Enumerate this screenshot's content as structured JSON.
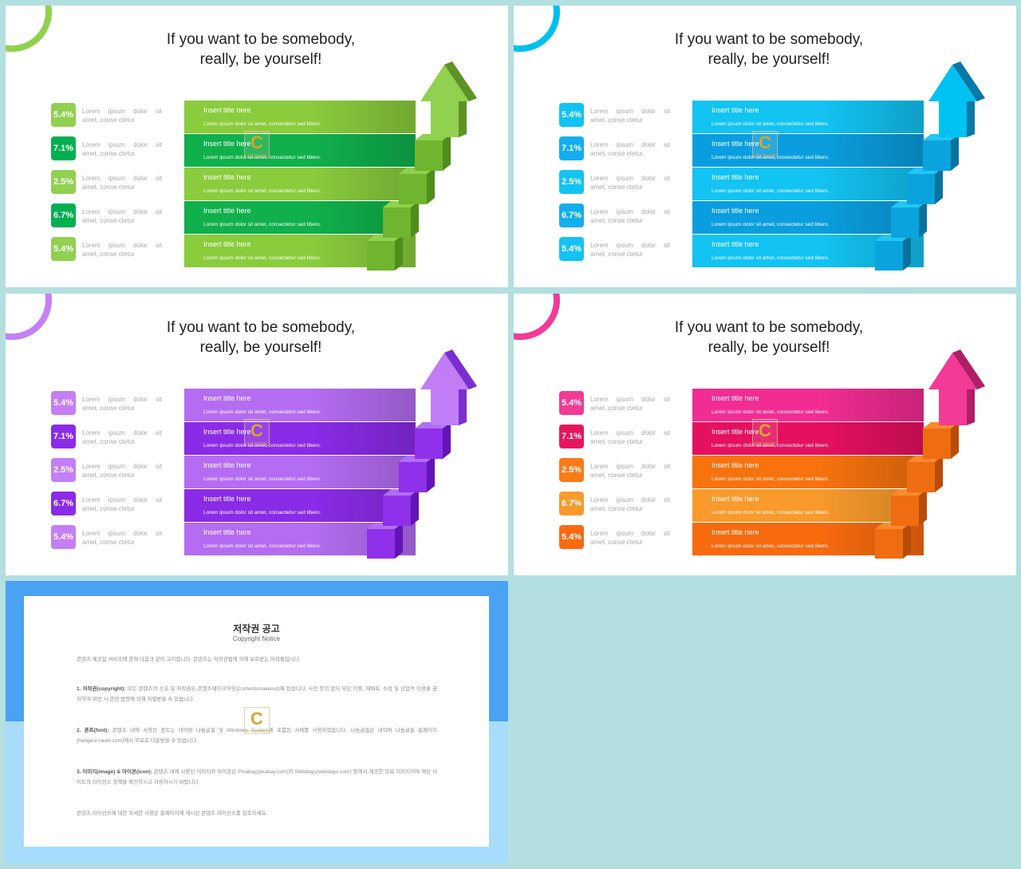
{
  "slides": [
    {
      "id": "green",
      "accent": "#92d050",
      "title_line1": "If you want to be somebody,",
      "title_line2": "really, be yourself!",
      "badges": [
        {
          "value": "5.4%",
          "color": "#92d050"
        },
        {
          "value": "7.1%",
          "color": "#00b050"
        },
        {
          "value": "2.5%",
          "color": "#92d050"
        },
        {
          "value": "6.7%",
          "color": "#00b050"
        },
        {
          "value": "5.4%",
          "color": "#92d050"
        }
      ],
      "band_colors": [
        "#8acc3c",
        "#10b04c",
        "#8acc3c",
        "#10b04c",
        "#8acc3c"
      ],
      "stair_colors": {
        "top": "#8fd14a",
        "front": "#6fb52f",
        "side": "#4f8d1c",
        "arrow": "#92d050",
        "arrow_side": "#5d9326"
      }
    },
    {
      "id": "blue",
      "accent": "#00c0f0",
      "title_line1": "If you want to be somebody,",
      "title_line2": "really, be yourself!",
      "badges": [
        {
          "value": "5.4%",
          "color": "#12c3f3"
        },
        {
          "value": "7.1%",
          "color": "#12aef0"
        },
        {
          "value": "2.5%",
          "color": "#12c3f3"
        },
        {
          "value": "6.7%",
          "color": "#12aef0"
        },
        {
          "value": "5.4%",
          "color": "#12c3f3"
        }
      ],
      "band_colors": [
        "#12c3f3",
        "#0a9ee0",
        "#12c3f3",
        "#0a9ee0",
        "#12c3f3"
      ],
      "stair_colors": {
        "top": "#22c6f6",
        "front": "#0ba3de",
        "side": "#08729e",
        "arrow": "#00c2f2",
        "arrow_side": "#0a78a8"
      }
    },
    {
      "id": "purple",
      "accent": "#c580f8",
      "title_line1": "If you want to be somebody,",
      "title_line2": "really, be yourself!",
      "badges": [
        {
          "value": "5.4%",
          "color": "#c47ef6"
        },
        {
          "value": "7.1%",
          "color": "#8a2be8"
        },
        {
          "value": "2.5%",
          "color": "#c47ef6"
        },
        {
          "value": "6.7%",
          "color": "#8a2be8"
        },
        {
          "value": "5.4%",
          "color": "#c47ef6"
        }
      ],
      "band_colors": [
        "#b46cf2",
        "#8a2be8",
        "#b46cf2",
        "#8a2be8",
        "#b46cf2"
      ],
      "stair_colors": {
        "top": "#b06ef5",
        "front": "#8f30ea",
        "side": "#6314b8",
        "arrow": "#c07df6",
        "arrow_side": "#7a2ed0"
      }
    },
    {
      "id": "pink",
      "accent": "#f23a96",
      "title_line1": "If you want to be somebody,",
      "title_line2": "really, be yourself!",
      "badges": [
        {
          "value": "5.4%",
          "color": "#f23a96"
        },
        {
          "value": "7.1%",
          "color": "#e6155e"
        },
        {
          "value": "2.5%",
          "color": "#fb7a18"
        },
        {
          "value": "6.7%",
          "color": "#fb9a2c"
        },
        {
          "value": "5.4%",
          "color": "#fa6a10"
        }
      ],
      "band_colors": [
        "#f22c92",
        "#e61060",
        "#f8720e",
        "#f89a2c",
        "#f86a0e"
      ],
      "stair_colors": {
        "top": "#fb8a2a",
        "front": "#f06c10",
        "side": "#b84c08",
        "arrow": "#f23a96",
        "arrow_side": "#b01e66"
      }
    }
  ],
  "rows": [
    {
      "title": "Insert title here",
      "desc": "Lorem ipsum dolor sit amet, consectetur sed libero.",
      "lorem_line1": "Lorem ipsum dolor sit",
      "lorem_line2": "amet, conse ctetur"
    },
    {
      "title": "Insert title here",
      "desc": "Lorem ipsum dolor sit amet, consectetur sed libero.",
      "lorem_line1": "Lorem ipsum dolor sit",
      "lorem_line2": "amet, conse ctetur."
    },
    {
      "title": "Insert title here",
      "desc": "Lorem ipsum dolor sit amet, consectetur sed libero.",
      "lorem_line1": "Lorem ipsum dolor sit",
      "lorem_line2": "amet, conse ctetur"
    },
    {
      "title": "Insert title here",
      "desc": "Lorem ipsum dolor sit amet, consectetur sed libero.",
      "lorem_line1": "Lorem ipsum dolor sit",
      "lorem_line2": "amet, conse ctetur"
    },
    {
      "title": "Insert title here",
      "desc": "Lorem ipsum dolor sit amet, consectetur sed libero.",
      "lorem_line1": "Lorem ipsum dolor sit",
      "lorem_line2": "amet, conse ctetur"
    }
  ],
  "watermark": {
    "letter": "C",
    "text": "CONTENTSMAKEOUT"
  },
  "notice": {
    "title": "저작권 공고",
    "subtitle": "Copyright Notice",
    "intro": "콘텐츠 제공업 서비스에 관해 다음과 같이 고지합니다. 콘텐츠는 저작권법에 의해 보호받는 저작물입니다.",
    "p1_head": "1. 저작권(copyright):",
    "p1_body": "모든 콘텐츠의 소유 및 저작권은 콘텐츠메이크아웃(Contentsmakeout)에 있습니다. 사전 동의 없이 무단 이용, 재배포, 수정 및 상업적 이용을 금지하며 위반 시 관련 법령에 의해 처벌받을 수 있습니다.",
    "p2_head": "2. 폰트(font):",
    "p2_body": "콘텐츠 내에 사용된 폰트는 네이버 나눔글꼴 및 Windows System에 포함된 서체를 사용하였습니다. 나눔글꼴은 네이버 나눔글꼴 홈페이지(hangeul.naver.com)에서 무료로 다운받을 수 있습니다.",
    "p3_head": "3. 이미지(image) & 아이콘(icon):",
    "p3_body": "콘텐츠 내에 사용된 이미지와 아이콘은 Pixabay(pixabay.com)와 Webdays(webdays.com) 등에서 제공한 무료 이미지이며 해당 사이트의 라이선스 정책을 확인하시고 사용하시기 바랍니다.",
    "outro": "콘텐츠 라이선스에 대한 자세한 사항은 홈페이지에 게시된 콘텐츠 라이선스를 참조하세요."
  }
}
